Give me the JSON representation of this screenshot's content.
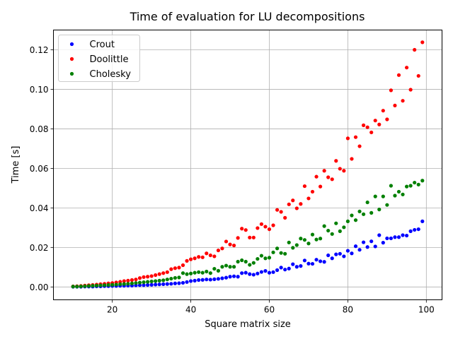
{
  "chart_data": {
    "type": "scatter",
    "title": "Time of evaluation for LU decompositions",
    "xlabel": "Square matrix size",
    "ylabel": "Time [s]",
    "xlim": [
      5,
      104
    ],
    "ylim": [
      -0.0065,
      0.13
    ],
    "xticks": [
      20,
      40,
      60,
      80,
      100
    ],
    "yticks": [
      0.0,
      0.02,
      0.04,
      0.06,
      0.08,
      0.1,
      0.12
    ],
    "ytick_labels": [
      "0.00",
      "0.02",
      "0.04",
      "0.06",
      "0.08",
      "0.10",
      "0.12"
    ],
    "grid": true,
    "legend_position": "top-left",
    "x": [
      10,
      11,
      12,
      13,
      14,
      15,
      16,
      17,
      18,
      19,
      20,
      21,
      22,
      23,
      24,
      25,
      26,
      27,
      28,
      29,
      30,
      31,
      32,
      33,
      34,
      35,
      36,
      37,
      38,
      39,
      40,
      41,
      42,
      43,
      44,
      45,
      46,
      47,
      48,
      49,
      50,
      51,
      52,
      53,
      54,
      55,
      56,
      57,
      58,
      59,
      60,
      61,
      62,
      63,
      64,
      65,
      66,
      67,
      68,
      69,
      70,
      71,
      72,
      73,
      74,
      75,
      76,
      77,
      78,
      79,
      80,
      81,
      82,
      83,
      84,
      85,
      86,
      87,
      88,
      89,
      90,
      91,
      92,
      93,
      94,
      95,
      96,
      97,
      98,
      99
    ],
    "series": [
      {
        "name": "Crout",
        "color": "#0000ff",
        "values": [
          0.0001,
          0.0001,
          0.0001,
          0.0002,
          0.0002,
          0.0002,
          0.0003,
          0.0003,
          0.0004,
          0.0004,
          0.0005,
          0.0005,
          0.0006,
          0.0006,
          0.0007,
          0.0007,
          0.0008,
          0.0009,
          0.0009,
          0.001,
          0.0011,
          0.0012,
          0.0013,
          0.0014,
          0.0015,
          0.0016,
          0.0018,
          0.0019,
          0.0021,
          0.0025,
          0.003,
          0.0032,
          0.0035,
          0.0036,
          0.0038,
          0.0037,
          0.0039,
          0.0041,
          0.0044,
          0.0047,
          0.0052,
          0.0054,
          0.0052,
          0.007,
          0.0072,
          0.0065,
          0.0062,
          0.0068,
          0.0076,
          0.0081,
          0.0072,
          0.0075,
          0.0085,
          0.0098,
          0.0088,
          0.0093,
          0.0115,
          0.0102,
          0.0106,
          0.0134,
          0.0118,
          0.0117,
          0.0138,
          0.013,
          0.0127,
          0.016,
          0.0145,
          0.0165,
          0.0168,
          0.0155,
          0.0183,
          0.017,
          0.0206,
          0.0188,
          0.0226,
          0.0202,
          0.0231,
          0.0205,
          0.0262,
          0.0224,
          0.0246,
          0.0246,
          0.0252,
          0.0252,
          0.0262,
          0.026,
          0.0282,
          0.0289,
          0.0292,
          0.0332
        ]
      },
      {
        "name": "Doolittle",
        "color": "#ff0000",
        "values": [
          0.0003,
          0.0004,
          0.0005,
          0.0007,
          0.0009,
          0.001,
          0.0012,
          0.0014,
          0.0016,
          0.0018,
          0.002,
          0.0023,
          0.0026,
          0.003,
          0.0032,
          0.0035,
          0.0038,
          0.0045,
          0.005,
          0.0052,
          0.0055,
          0.006,
          0.0065,
          0.007,
          0.0075,
          0.009,
          0.0095,
          0.0098,
          0.011,
          0.0132,
          0.014,
          0.0145,
          0.0152,
          0.015,
          0.017,
          0.016,
          0.0155,
          0.0185,
          0.0195,
          0.023,
          0.0215,
          0.021,
          0.0248,
          0.0295,
          0.0288,
          0.025,
          0.025,
          0.0298,
          0.0318,
          0.0305,
          0.0292,
          0.0312,
          0.039,
          0.038,
          0.035,
          0.0418,
          0.0438,
          0.0398,
          0.042,
          0.051,
          0.0448,
          0.0482,
          0.0558,
          0.0508,
          0.0588,
          0.0555,
          0.0545,
          0.0638,
          0.0598,
          0.0588,
          0.0752,
          0.0648,
          0.0758,
          0.0712,
          0.0818,
          0.0808,
          0.0782,
          0.0842,
          0.0822,
          0.0892,
          0.0848,
          0.0995,
          0.0918,
          0.1072,
          0.0942,
          0.111,
          0.0998,
          0.12,
          0.1068,
          0.1238
        ]
      },
      {
        "name": "Cholesky",
        "color": "#008000",
        "values": [
          0.0002,
          0.0002,
          0.0003,
          0.0004,
          0.0005,
          0.0006,
          0.0007,
          0.0008,
          0.0009,
          0.001,
          0.0011,
          0.0012,
          0.0014,
          0.0015,
          0.0016,
          0.0018,
          0.002,
          0.0022,
          0.0024,
          0.0026,
          0.0028,
          0.003,
          0.0032,
          0.0034,
          0.0038,
          0.0042,
          0.0046,
          0.0048,
          0.007,
          0.0065,
          0.0068,
          0.0072,
          0.0075,
          0.0072,
          0.0078,
          0.007,
          0.0092,
          0.0082,
          0.0102,
          0.0108,
          0.0102,
          0.0102,
          0.0128,
          0.0135,
          0.0128,
          0.0112,
          0.0122,
          0.0142,
          0.0158,
          0.0145,
          0.0148,
          0.0175,
          0.0195,
          0.0172,
          0.0168,
          0.0225,
          0.0198,
          0.0212,
          0.0245,
          0.0238,
          0.022,
          0.0265,
          0.024,
          0.0245,
          0.0308,
          0.0285,
          0.0268,
          0.0322,
          0.0282,
          0.0302,
          0.0332,
          0.0362,
          0.0338,
          0.0382,
          0.0368,
          0.0428,
          0.0375,
          0.0458,
          0.0392,
          0.0458,
          0.0415,
          0.0512,
          0.0462,
          0.0482,
          0.0468,
          0.0508,
          0.0512,
          0.0528,
          0.0518,
          0.0538
        ]
      }
    ]
  }
}
